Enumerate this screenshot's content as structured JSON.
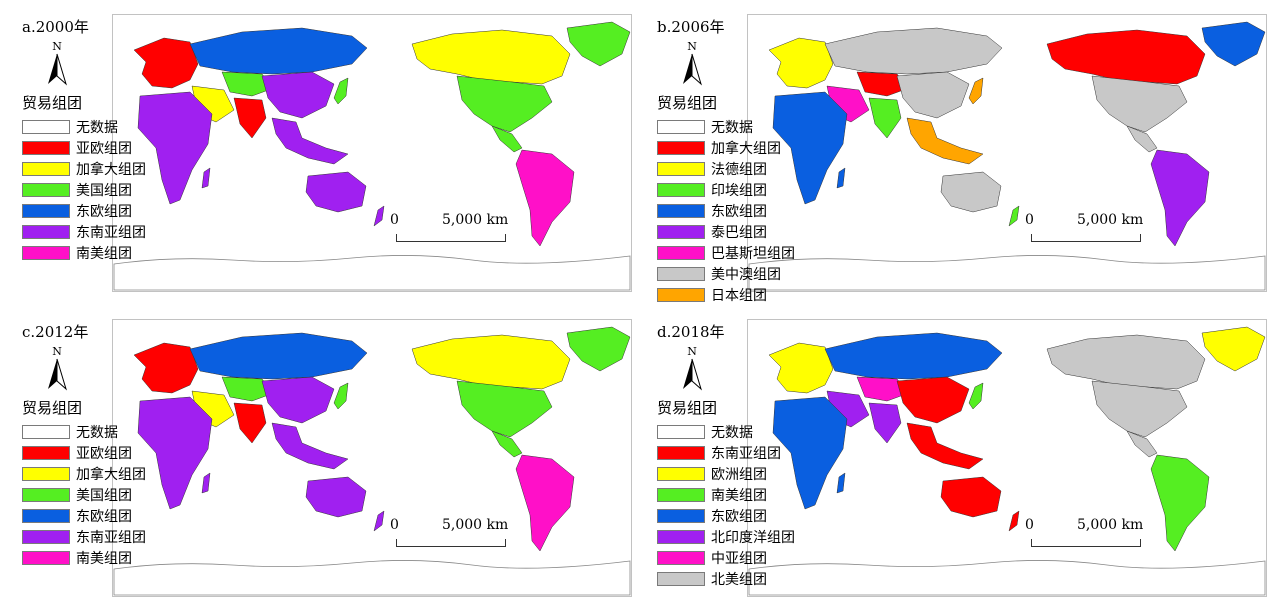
{
  "units": {
    "north": "N",
    "scale_zero": "0",
    "scale_distance": "5,000 km"
  },
  "panels": [
    {
      "id": "a",
      "title": "a.2000年",
      "legend_title": "贸易组团",
      "legend": [
        {
          "label": "无数据",
          "color": "#ffffff"
        },
        {
          "label": "亚欧组团",
          "color": "#ff0000"
        },
        {
          "label": "加拿大组团",
          "color": "#ffff00"
        },
        {
          "label": "美国组团",
          "color": "#55ee22"
        },
        {
          "label": "东欧组团",
          "color": "#0a5fe0"
        },
        {
          "label": "东南亚组团",
          "color": "#a020f0"
        },
        {
          "label": "南美组团",
          "color": "#ff10c8"
        }
      ],
      "regions": {
        "north_america": "#ffff00",
        "us": "#55ee22",
        "greenland": "#55ee22",
        "south_america": "#ff10c8",
        "europe": "#ff0000",
        "russia": "#0a5fe0",
        "africa": "#a020f0",
        "middle_east": "#ffff00",
        "south_asia": "#ff0000",
        "china": "#a020f0",
        "se_asia": "#a020f0",
        "australia": "#a020f0",
        "central_asia": "#55ee22",
        "japan": "#55ee22",
        "nz": "#a020f0"
      }
    },
    {
      "id": "b",
      "title": "b.2006年",
      "legend_title": "贸易组团",
      "legend": [
        {
          "label": "无数据",
          "color": "#ffffff"
        },
        {
          "label": "加拿大组团",
          "color": "#ff0000"
        },
        {
          "label": "法德组团",
          "color": "#ffff00"
        },
        {
          "label": "印埃组团",
          "color": "#55ee22"
        },
        {
          "label": "东欧组团",
          "color": "#0a5fe0"
        },
        {
          "label": "泰巴组团",
          "color": "#a020f0"
        },
        {
          "label": "巴基斯坦组团",
          "color": "#ff10c8"
        },
        {
          "label": "美中澳组团",
          "color": "#c8c8c8"
        },
        {
          "label": "日本组团",
          "color": "#ffa500"
        }
      ],
      "regions": {
        "north_america": "#ff0000",
        "us": "#c8c8c8",
        "greenland": "#0a5fe0",
        "south_america": "#a020f0",
        "europe": "#ffff00",
        "russia": "#c8c8c8",
        "africa": "#0a5fe0",
        "middle_east": "#ff10c8",
        "south_asia": "#55ee22",
        "china": "#c8c8c8",
        "se_asia": "#ffa500",
        "australia": "#c8c8c8",
        "central_asia": "#ff0000",
        "japan": "#ffa500",
        "nz": "#55ee22"
      }
    },
    {
      "id": "c",
      "title": "c.2012年",
      "legend_title": "贸易组团",
      "legend": [
        {
          "label": "无数据",
          "color": "#ffffff"
        },
        {
          "label": "亚欧组团",
          "color": "#ff0000"
        },
        {
          "label": "加拿大组团",
          "color": "#ffff00"
        },
        {
          "label": "美国组团",
          "color": "#55ee22"
        },
        {
          "label": "东欧组团",
          "color": "#0a5fe0"
        },
        {
          "label": "东南亚组团",
          "color": "#a020f0"
        },
        {
          "label": "南美组团",
          "color": "#ff10c8"
        }
      ],
      "regions": {
        "north_america": "#ffff00",
        "us": "#55ee22",
        "greenland": "#55ee22",
        "south_america": "#ff10c8",
        "europe": "#ff0000",
        "russia": "#0a5fe0",
        "africa": "#a020f0",
        "middle_east": "#ffff00",
        "south_asia": "#ff0000",
        "china": "#a020f0",
        "se_asia": "#a020f0",
        "australia": "#a020f0",
        "central_asia": "#55ee22",
        "japan": "#55ee22",
        "nz": "#a020f0"
      }
    },
    {
      "id": "d",
      "title": "d.2018年",
      "legend_title": "贸易组团",
      "legend": [
        {
          "label": "无数据",
          "color": "#ffffff"
        },
        {
          "label": "东南亚组团",
          "color": "#ff0000"
        },
        {
          "label": "欧洲组团",
          "color": "#ffff00"
        },
        {
          "label": "南美组团",
          "color": "#55ee22"
        },
        {
          "label": "东欧组团",
          "color": "#0a5fe0"
        },
        {
          "label": "北印度洋组团",
          "color": "#a020f0"
        },
        {
          "label": "中亚组团",
          "color": "#ff10c8"
        },
        {
          "label": "北美组团",
          "color": "#c8c8c8"
        }
      ],
      "regions": {
        "north_america": "#c8c8c8",
        "us": "#c8c8c8",
        "greenland": "#ffff00",
        "south_america": "#55ee22",
        "europe": "#ffff00",
        "russia": "#0a5fe0",
        "africa": "#0a5fe0",
        "middle_east": "#a020f0",
        "south_asia": "#a020f0",
        "china": "#ff0000",
        "se_asia": "#ff0000",
        "australia": "#ff0000",
        "central_asia": "#ff10c8",
        "japan": "#55ee22",
        "nz": "#ff0000"
      }
    }
  ]
}
